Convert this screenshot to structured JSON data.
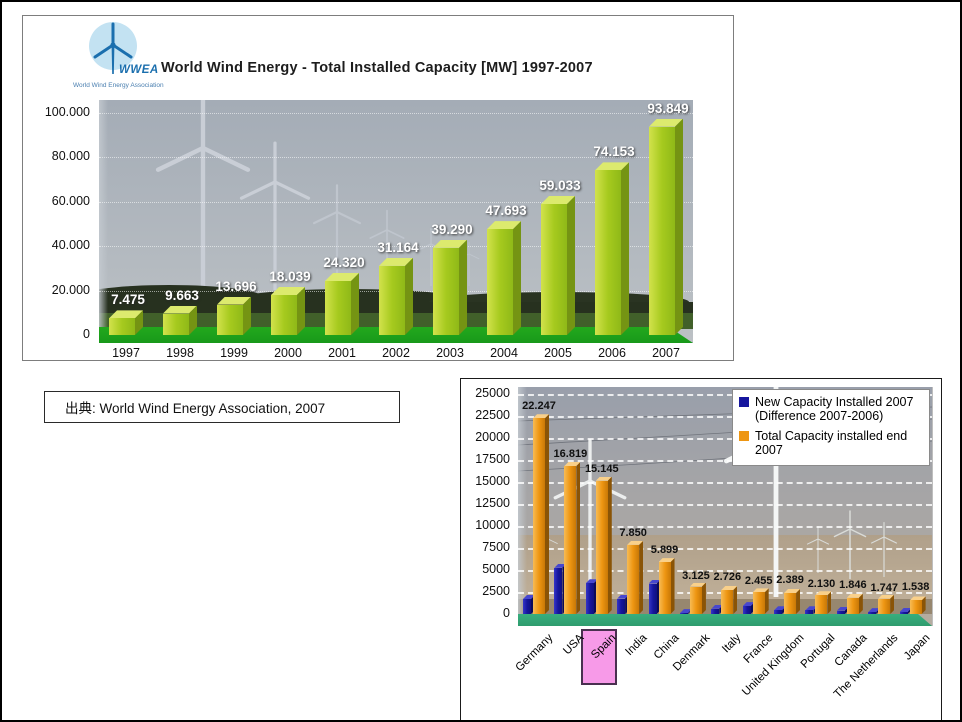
{
  "slide": {
    "background": "#ffffff",
    "border_color": "#000000"
  },
  "source_note": {
    "text": "出典: World Wind Energy Association, 2007"
  },
  "wwea_logo": {
    "acronym": "WWEA",
    "caption": "World Wind Energy Association"
  },
  "colors": {
    "top_bar": {
      "front": "linear-gradient(90deg,#d2e24c,#a6ca1e,#8fb918)",
      "side": "#759413",
      "top": "#dcea6e"
    },
    "orange_bar": {
      "front": "linear-gradient(90deg,#f7bb55,#ee9612,#c97806)",
      "side": "#8a5406",
      "top": "#f9d08a"
    },
    "blue_bar": {
      "front": "linear-gradient(90deg,#3535c8,#16169e,#10107e)",
      "side": "#0b0b5a",
      "top": "#4747cf"
    },
    "top_floor": "#18991a",
    "bottom_floor": "#2f9c6e",
    "spain_highlight": "#f79ae8"
  },
  "chart_data": [
    {
      "type": "bar",
      "title": "World Wind Energy - Total Installed Capacity [MW] 1997-2007",
      "categories": [
        "1997",
        "1998",
        "1999",
        "2000",
        "2001",
        "2002",
        "2003",
        "2004",
        "2005",
        "2006",
        "2007"
      ],
      "values": [
        7475,
        9663,
        13696,
        18039,
        24320,
        31164,
        39290,
        47693,
        59033,
        74153,
        93849
      ],
      "value_labels": [
        "7.475",
        "9.663",
        "13.696",
        "18.039",
        "24.320",
        "31.164",
        "39.290",
        "47.693",
        "59.033",
        "74.153",
        "93.849"
      ],
      "xlabel": "",
      "ylabel": "",
      "ylim": [
        0,
        100000
      ],
      "ytick_values": [
        0,
        20000,
        40000,
        60000,
        80000,
        100000
      ],
      "ytick_labels": [
        "0",
        "20.000",
        "40.000",
        "60.000",
        "80.000",
        "100.000"
      ],
      "grid": "dotted-white",
      "legend_position": "none",
      "background": "wind farm photo"
    },
    {
      "type": "bar",
      "title": "",
      "categories": [
        "Germany",
        "USA",
        "Spain",
        "India",
        "China",
        "Denmark",
        "Italy",
        "France",
        "United Kingdom",
        "Portugal",
        "Canada",
        "The Netherlands",
        "Japan"
      ],
      "series": [
        {
          "name": "New Capacity Installed 2007 (Difference 2007-2006)",
          "color": "#16169e",
          "values": [
            1700,
            5250,
            3500,
            1750,
            3450,
            100,
            600,
            900,
            430,
            430,
            390,
            210,
            230
          ]
        },
        {
          "name": "Total Capacity installed end 2007",
          "color": "#ee9612",
          "values": [
            22247,
            16819,
            15145,
            7850,
            5899,
            3125,
            2726,
            2455,
            2389,
            2130,
            1846,
            1747,
            1538
          ],
          "value_labels": [
            "22.247",
            "16.819",
            "15.145",
            "7.850",
            "5.899",
            "3.125",
            "2.726",
            "2.455",
            "2.389",
            "2.130",
            "1.846",
            "1.747",
            "1.538"
          ]
        }
      ],
      "ylim": [
        0,
        25000
      ],
      "ytick_values": [
        0,
        2500,
        5000,
        7500,
        10000,
        12500,
        15000,
        17500,
        20000,
        22500,
        25000
      ],
      "ytick_labels": [
        "0",
        "2500",
        "5000",
        "7500",
        "10000",
        "12500",
        "15000",
        "17500",
        "20000",
        "22500",
        "25000"
      ],
      "grid": "dashed-white",
      "legend_position": "top-right",
      "highlighted_category": "Spain",
      "background": "wind farm photo"
    }
  ]
}
